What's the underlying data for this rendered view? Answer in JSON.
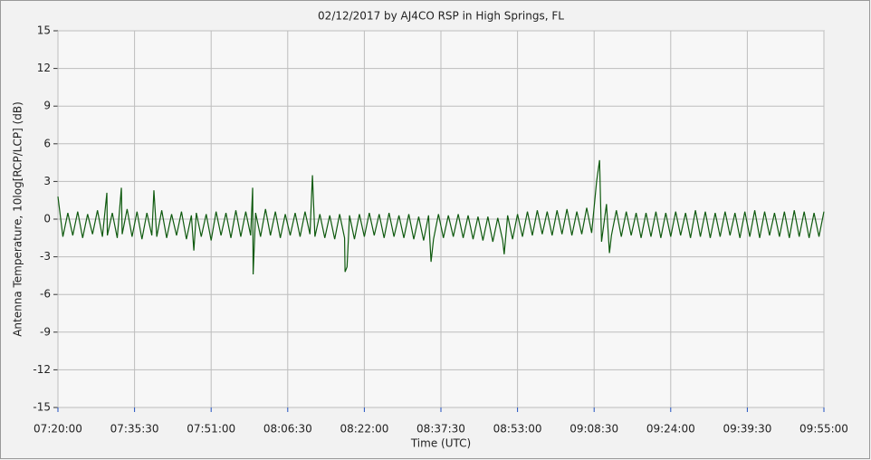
{
  "chart_data": {
    "type": "line",
    "title": "02/12/2017  by  AJ4CO RSP  in  High Springs, FL",
    "xlabel": "Time (UTC)",
    "ylabel": "Antenna Temperature, 10log[RCP/LCP] (dB)",
    "color": "#0f5a0f",
    "grid": true,
    "xlim": [
      "07:20:00",
      "09:55:00"
    ],
    "xticks": [
      "07:20:00",
      "07:35:30",
      "07:51:00",
      "08:06:30",
      "08:22:00",
      "08:37:30",
      "08:53:00",
      "09:08:30",
      "09:24:00",
      "09:39:30",
      "09:55:00"
    ],
    "ylim": [
      -15,
      15
    ],
    "yticks": [
      -15,
      -12,
      -9,
      -6,
      -3,
      0,
      3,
      6,
      9,
      12,
      15
    ],
    "x": [
      "07:20:00",
      "07:21:00",
      "07:22:00",
      "07:23:00",
      "07:24:00",
      "07:25:00",
      "07:26:00",
      "07:27:00",
      "07:28:00",
      "07:29:00",
      "07:29:54",
      "07:30:00",
      "07:31:00",
      "07:32:00",
      "07:32:50",
      "07:33:00",
      "07:34:00",
      "07:35:00",
      "07:36:00",
      "07:37:00",
      "07:38:00",
      "07:39:00",
      "07:39:25",
      "07:40:00",
      "07:41:00",
      "07:42:00",
      "07:43:00",
      "07:44:00",
      "07:45:00",
      "07:46:00",
      "07:47:00",
      "07:47:30",
      "07:48:00",
      "07:49:00",
      "07:50:00",
      "07:51:00",
      "07:52:00",
      "07:53:00",
      "07:54:00",
      "07:55:00",
      "07:56:00",
      "07:57:00",
      "07:58:00",
      "07:59:00",
      "07:59:24",
      "07:59:30",
      "08:00:00",
      "08:01:00",
      "08:02:00",
      "08:03:00",
      "08:04:00",
      "08:05:00",
      "08:06:00",
      "08:07:00",
      "08:08:00",
      "08:09:00",
      "08:10:00",
      "08:11:00",
      "08:11:30",
      "08:12:00",
      "08:13:00",
      "08:14:00",
      "08:15:00",
      "08:16:00",
      "08:17:00",
      "08:18:00",
      "08:18:06",
      "08:18:30",
      "08:19:00",
      "08:20:00",
      "08:21:00",
      "08:22:00",
      "08:23:00",
      "08:24:00",
      "08:25:00",
      "08:26:00",
      "08:27:00",
      "08:28:00",
      "08:29:00",
      "08:30:00",
      "08:31:00",
      "08:32:00",
      "08:33:00",
      "08:34:00",
      "08:35:00",
      "08:35:30",
      "08:36:00",
      "08:37:00",
      "08:38:00",
      "08:39:00",
      "08:40:00",
      "08:41:00",
      "08:42:00",
      "08:43:00",
      "08:44:00",
      "08:45:00",
      "08:46:00",
      "08:47:00",
      "08:48:00",
      "08:49:00",
      "08:50:00",
      "08:50:18",
      "08:51:00",
      "08:52:00",
      "08:53:00",
      "08:54:00",
      "08:55:00",
      "08:56:00",
      "08:57:00",
      "08:58:00",
      "08:59:00",
      "09:00:00",
      "09:01:00",
      "09:02:00",
      "09:03:00",
      "09:04:00",
      "09:05:00",
      "09:06:00",
      "09:07:00",
      "09:08:00",
      "09:09:00",
      "09:09:36",
      "09:10:00",
      "09:11:00",
      "09:11:36",
      "09:12:00",
      "09:13:00",
      "09:14:00",
      "09:15:00",
      "09:16:00",
      "09:17:00",
      "09:18:00",
      "09:19:00",
      "09:20:00",
      "09:21:00",
      "09:22:00",
      "09:23:00",
      "09:24:00",
      "09:25:00",
      "09:26:00",
      "09:27:00",
      "09:28:00",
      "09:29:00",
      "09:30:00",
      "09:31:00",
      "09:32:00",
      "09:33:00",
      "09:34:00",
      "09:35:00",
      "09:36:00",
      "09:37:00",
      "09:38:00",
      "09:39:00",
      "09:40:00",
      "09:41:00",
      "09:42:00",
      "09:43:00",
      "09:44:00",
      "09:45:00",
      "09:46:00",
      "09:47:00",
      "09:48:00",
      "09:49:00",
      "09:50:00",
      "09:51:00",
      "09:52:00",
      "09:53:00",
      "09:54:00",
      "09:55:00"
    ],
    "values": [
      1.8,
      -1.4,
      0.5,
      -1.3,
      0.6,
      -1.5,
      0.4,
      -1.2,
      0.7,
      -1.4,
      2.1,
      -1.3,
      0.5,
      -1.5,
      2.5,
      -1.2,
      0.8,
      -1.4,
      0.6,
      -1.6,
      0.5,
      -1.3,
      2.3,
      -1.4,
      0.7,
      -1.5,
      0.4,
      -1.3,
      0.6,
      -1.6,
      0.3,
      -2.5,
      0.5,
      -1.4,
      0.4,
      -1.7,
      0.6,
      -1.3,
      0.5,
      -1.5,
      0.7,
      -1.4,
      0.6,
      -1.3,
      2.5,
      -4.4,
      0.5,
      -1.4,
      0.8,
      -1.3,
      0.6,
      -1.5,
      0.4,
      -1.3,
      0.5,
      -1.4,
      0.6,
      -1.2,
      3.5,
      -1.4,
      0.4,
      -1.5,
      0.3,
      -1.6,
      0.4,
      -1.5,
      -4.2,
      -3.8,
      0.3,
      -1.6,
      0.4,
      -1.4,
      0.5,
      -1.3,
      0.4,
      -1.5,
      0.5,
      -1.4,
      0.3,
      -1.5,
      0.4,
      -1.6,
      0.2,
      -1.7,
      0.3,
      -3.4,
      -1.6,
      0.4,
      -1.5,
      0.3,
      -1.4,
      0.4,
      -1.5,
      0.3,
      -1.6,
      0.2,
      -1.7,
      0.2,
      -1.8,
      0.1,
      -1.7,
      -2.8,
      0.3,
      -1.6,
      0.4,
      -1.4,
      0.6,
      -1.3,
      0.7,
      -1.2,
      0.6,
      -1.3,
      0.7,
      -1.2,
      0.8,
      -1.3,
      0.6,
      -1.2,
      0.9,
      -1.1,
      3.0,
      4.7,
      -1.8,
      1.2,
      -2.7,
      -1.3,
      0.7,
      -1.4,
      0.6,
      -1.3,
      0.5,
      -1.5,
      0.5,
      -1.4,
      0.6,
      -1.5,
      0.5,
      -1.4,
      0.6,
      -1.3,
      0.5,
      -1.5,
      0.7,
      -1.4,
      0.6,
      -1.5,
      0.5,
      -1.4,
      0.6,
      -1.3,
      0.5,
      -1.5,
      0.6,
      -1.4,
      0.7,
      -1.5,
      0.6,
      -1.3,
      0.5,
      -1.4,
      0.6,
      -1.5,
      0.7,
      -1.4,
      0.6,
      -1.5,
      0.5,
      -1.4,
      0.6
    ]
  }
}
